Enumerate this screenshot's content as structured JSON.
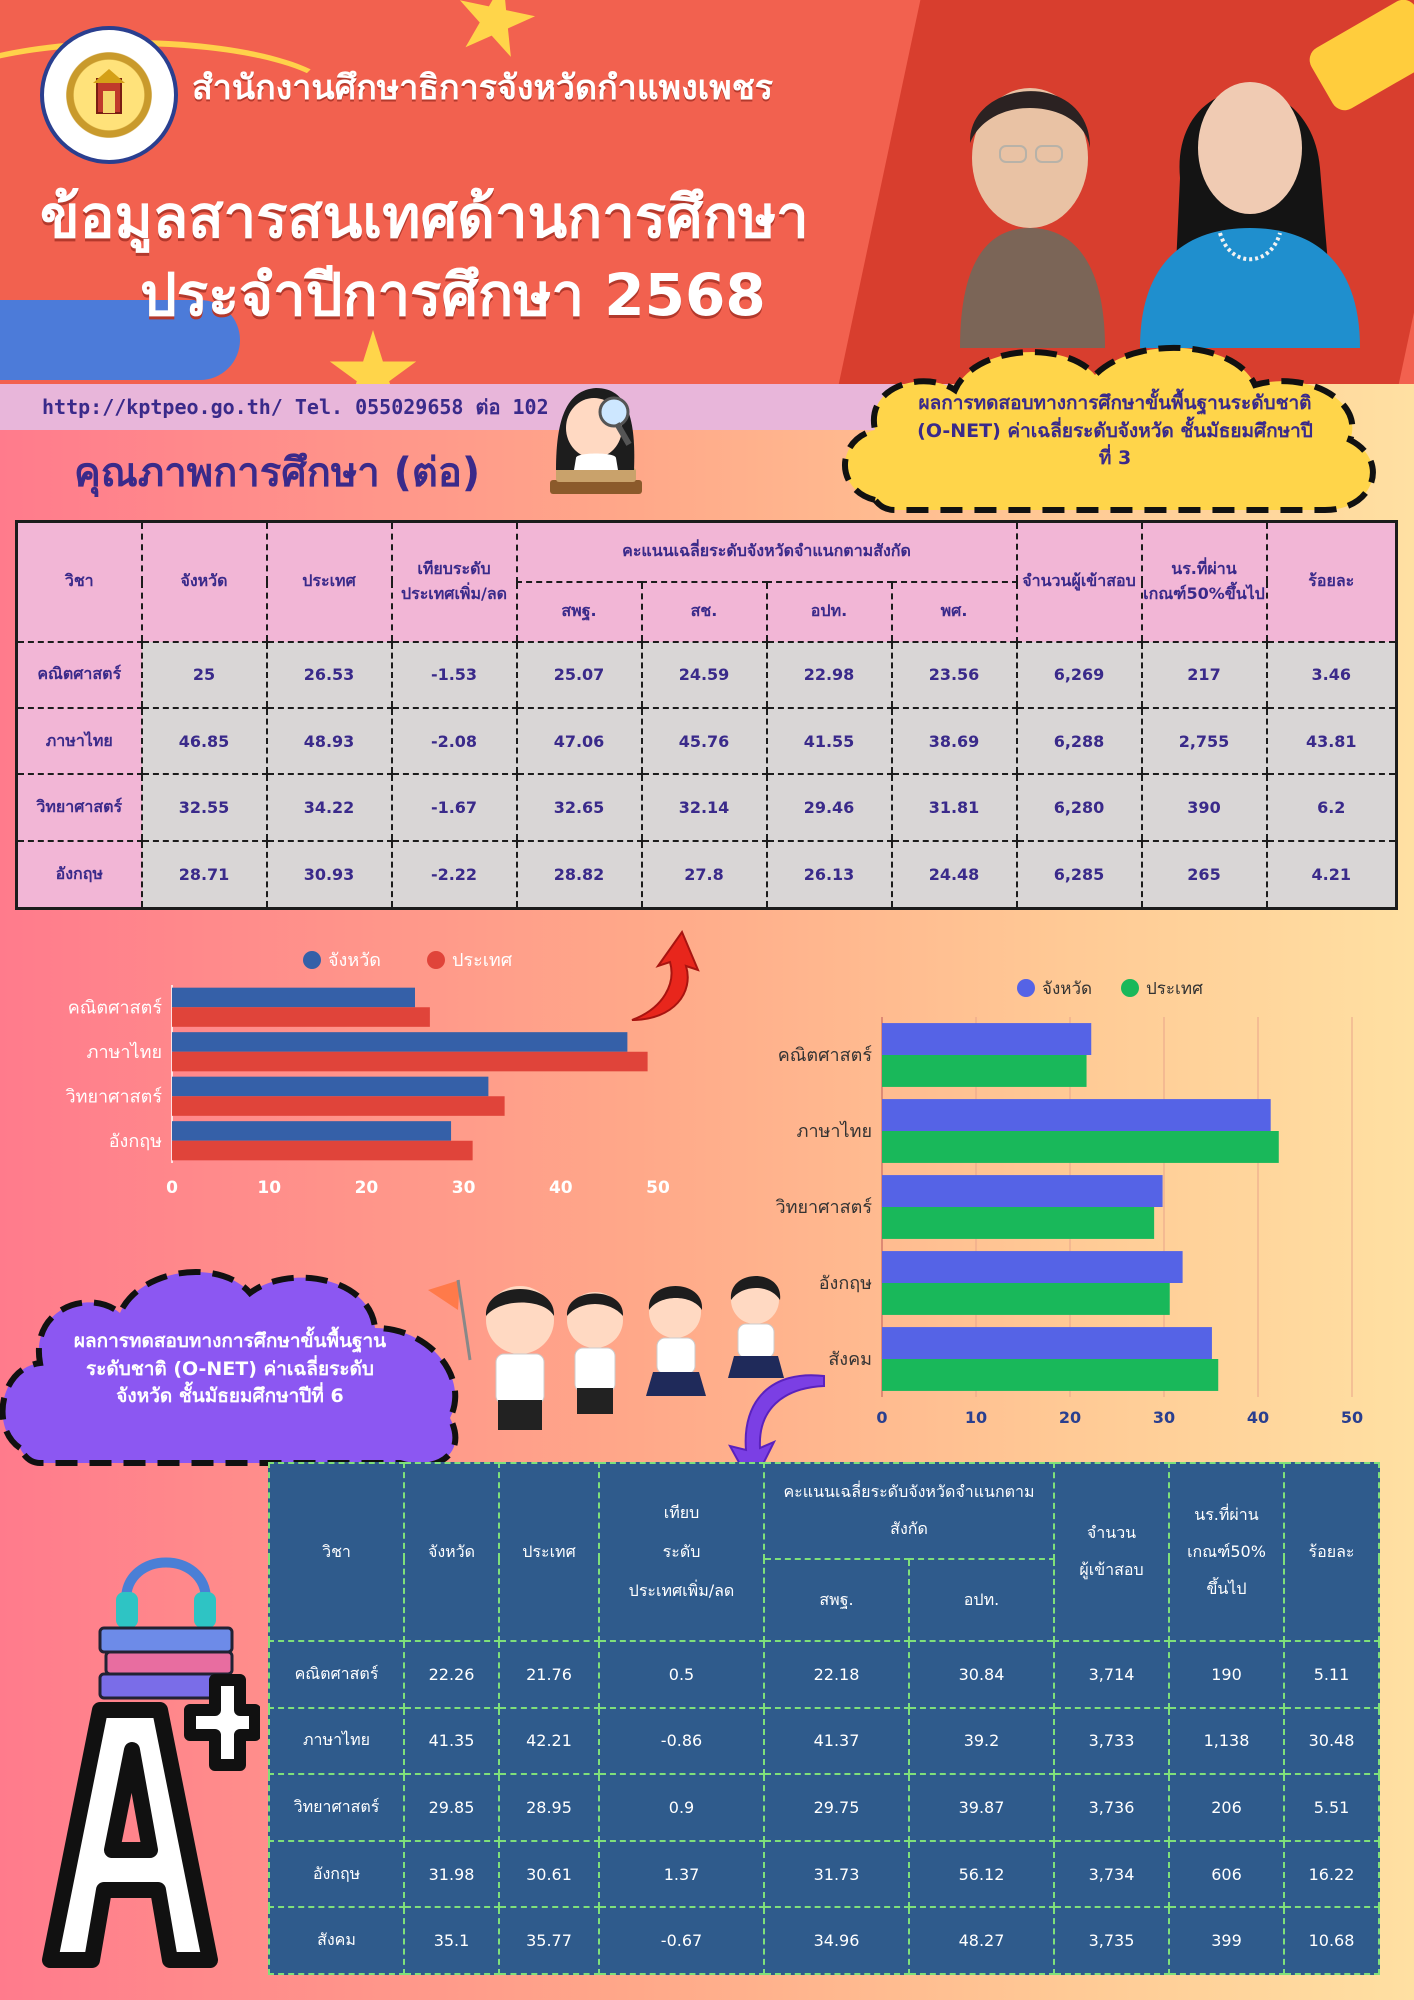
{
  "header": {
    "org_name": "สำนักงานศึกษาธิการจังหวัดกำแพงเพชร",
    "title_line1": "ข้อมูลสารสนเทศด้านการศึกษา",
    "title_line2": "ประจำปีการศึกษา  2568",
    "contact": "http://kptpeo.go.th/ Tel. 055029658 ต่อ 102",
    "section_title": "คุณภาพการศึกษา (ต่อ)"
  },
  "clouds": {
    "m3_text": "ผลการทดสอบทางการศึกษาขั้นพื้นฐานระดับชาติ (O-NET) ค่าเฉลี่ยระดับจังหวัด ชั้นมัธยมศึกษาปีที่ 3",
    "m6_text": "ผลการทดสอบทางการศึกษาขั้นพื้นฐานระดับชาติ (O-NET) ค่าเฉลี่ยระดับจังหวัด ชั้นมัธยมศึกษาปีที่ 6"
  },
  "table_m3": {
    "headers": {
      "subject": "วิชา",
      "province": "จังหวัด",
      "country": "ประเทศ",
      "compare": "เทียบระดับประเทศเพิ่ม/ลด",
      "affiliation": "คะแนนเฉลี่ยระดับจังหวัดจำแนกตามสังกัด",
      "aff_cols": [
        "สพฐ.",
        "สช.",
        "อปท.",
        "พศ."
      ],
      "examinees": "จำนวนผู้เข้าสอบ",
      "passed": "นร.ที่ผ่านเกณฑ์50%ขึ้นไป",
      "percent": "ร้อยละ"
    },
    "rows": [
      [
        "คณิตศาสตร์",
        "25",
        "26.53",
        "-1.53",
        "25.07",
        "24.59",
        "22.98",
        "23.56",
        "6,269",
        "217",
        "3.46"
      ],
      [
        "ภาษาไทย",
        "46.85",
        "48.93",
        "-2.08",
        "47.06",
        "45.76",
        "41.55",
        "38.69",
        "6,288",
        "2,755",
        "43.81"
      ],
      [
        "วิทยาศาสตร์",
        "32.55",
        "34.22",
        "-1.67",
        "32.65",
        "32.14",
        "29.46",
        "31.81",
        "6,280",
        "390",
        "6.2"
      ],
      [
        "อังกฤษ",
        "28.71",
        "30.93",
        "-2.22",
        "28.82",
        "27.8",
        "26.13",
        "24.48",
        "6,285",
        "265",
        "4.21"
      ]
    ]
  },
  "table_m6": {
    "headers": {
      "subject": "วิชา",
      "province": "จังหวัด",
      "country": "ประเทศ",
      "compare_1": "เทียบ",
      "compare_2": "ระดับ",
      "compare_3": "ประเทศเพิ่ม/ลด",
      "affiliation_1": "คะแนนเฉลี่ยระดับจังหวัดจำแนกตาม",
      "affiliation_2": "สังกัด",
      "aff_cols": [
        "สพฐ.",
        "อปท."
      ],
      "examinees_1": "จำนวน",
      "examinees_2": "ผู้เข้าสอบ",
      "passed_1": "นร.ที่ผ่าน",
      "passed_2": "เกณฑ์50%",
      "passed_3": "ขึ้นไป",
      "percent": "ร้อยละ"
    },
    "rows": [
      [
        "คณิตศาสตร์",
        "22.26",
        "21.76",
        "0.5",
        "22.18",
        "30.84",
        "3,714",
        "190",
        "5.11"
      ],
      [
        "ภาษาไทย",
        "41.35",
        "42.21",
        "-0.86",
        "41.37",
        "39.2",
        "3,733",
        "1,138",
        "30.48"
      ],
      [
        "วิทยาศาสตร์",
        "29.85",
        "28.95",
        "0.9",
        "29.75",
        "39.87",
        "3,736",
        "206",
        "5.51"
      ],
      [
        "อังกฤษ",
        "31.98",
        "30.61",
        "1.37",
        "31.73",
        "56.12",
        "3,734",
        "606",
        "16.22"
      ],
      [
        "สังคม",
        "35.1",
        "35.77",
        "-0.67",
        "34.96",
        "48.27",
        "3,735",
        "399",
        "10.68"
      ]
    ]
  },
  "chart_data": [
    {
      "type": "bar",
      "orientation": "horizontal",
      "title": "",
      "categories": [
        "คณิตศาสตร์",
        "ภาษาไทย",
        "วิทยาศาสตร์",
        "อังกฤษ"
      ],
      "series": [
        {
          "name": "จังหวัด",
          "color": "#3560a8",
          "values": [
            25,
            46.85,
            32.55,
            28.71
          ]
        },
        {
          "name": "ประเทศ",
          "color": "#e0443a",
          "values": [
            26.53,
            48.93,
            34.22,
            30.93
          ]
        }
      ],
      "xlim": [
        0,
        50
      ],
      "ticks": [
        "0",
        "10",
        "20",
        "30",
        "40",
        "50"
      ],
      "legend": "top",
      "grid": false
    },
    {
      "type": "bar",
      "orientation": "horizontal",
      "title": "",
      "categories": [
        "คณิตศาสตร์",
        "ภาษาไทย",
        "วิทยาศาสตร์",
        "อังกฤษ",
        "สังคม"
      ],
      "series": [
        {
          "name": "จังหวัด",
          "color": "#5563e6",
          "values": [
            22.26,
            41.35,
            29.85,
            31.98,
            35.1
          ]
        },
        {
          "name": "ประเทศ",
          "color": "#19b85a",
          "values": [
            21.76,
            42.21,
            28.95,
            30.61,
            35.77
          ]
        }
      ],
      "xlim": [
        0,
        50
      ],
      "ticks": [
        "0",
        "10",
        "20",
        "30",
        "40",
        "50"
      ],
      "legend": "top",
      "grid": true
    }
  ]
}
